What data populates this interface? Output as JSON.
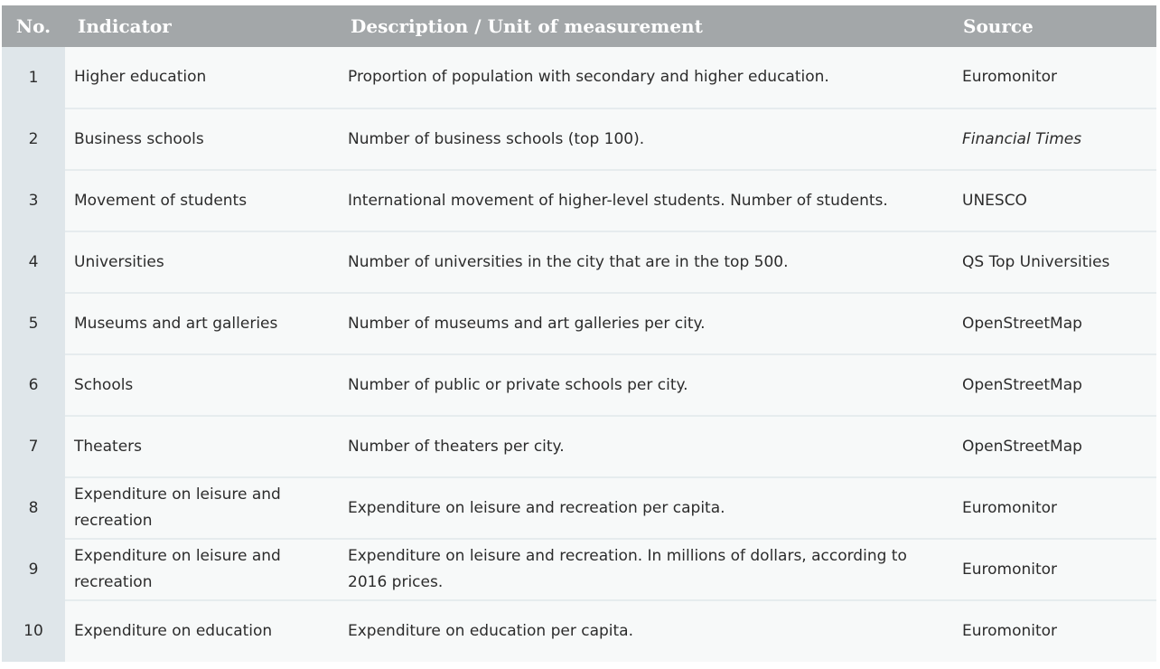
{
  "table": {
    "headers": {
      "no": "No.",
      "indicator": "Indicator",
      "description": "Description / Unit of measurement",
      "source": "Source"
    },
    "rows": [
      {
        "no": "1",
        "indicator": "Higher education",
        "description": "Proportion of population with secondary and higher education.",
        "source": "Euromonitor"
      },
      {
        "no": "2",
        "indicator": "Business schools",
        "description": "Number of business schools (top 100).",
        "source": "Financial Times"
      },
      {
        "no": "3",
        "indicator": "Movement of students",
        "description": "International movement of higher-level students. Number of students.",
        "source": "UNESCO"
      },
      {
        "no": "4",
        "indicator": "Universities",
        "description": "Number of universities in the city that are in the top 500.",
        "source": "QS Top Universities"
      },
      {
        "no": "5",
        "indicator": "Museums and art galleries",
        "description": "Number of museums and art galleries per city.",
        "source": "OpenStreetMap"
      },
      {
        "no": "6",
        "indicator": "Schools",
        "description": "Number of public or private schools per city.",
        "source": "OpenStreetMap"
      },
      {
        "no": "7",
        "indicator": "Theaters",
        "description": "Number of theaters per city.",
        "source": "OpenStreetMap"
      },
      {
        "no": "8",
        "indicator": "Expenditure on leisure and recreation",
        "description": "Expenditure on leisure and recreation per capita.",
        "source": "Euromonitor"
      },
      {
        "no": "9",
        "indicator": "Expenditure on leisure and recreation",
        "description": "Expenditure on leisure and recreation. In millions of dollars, according to 2016 prices.",
        "source": "Euromonitor"
      },
      {
        "no": "10",
        "indicator": "Expenditure on education",
        "description": "Expenditure on education per capita.",
        "source": "Euromonitor"
      }
    ]
  }
}
